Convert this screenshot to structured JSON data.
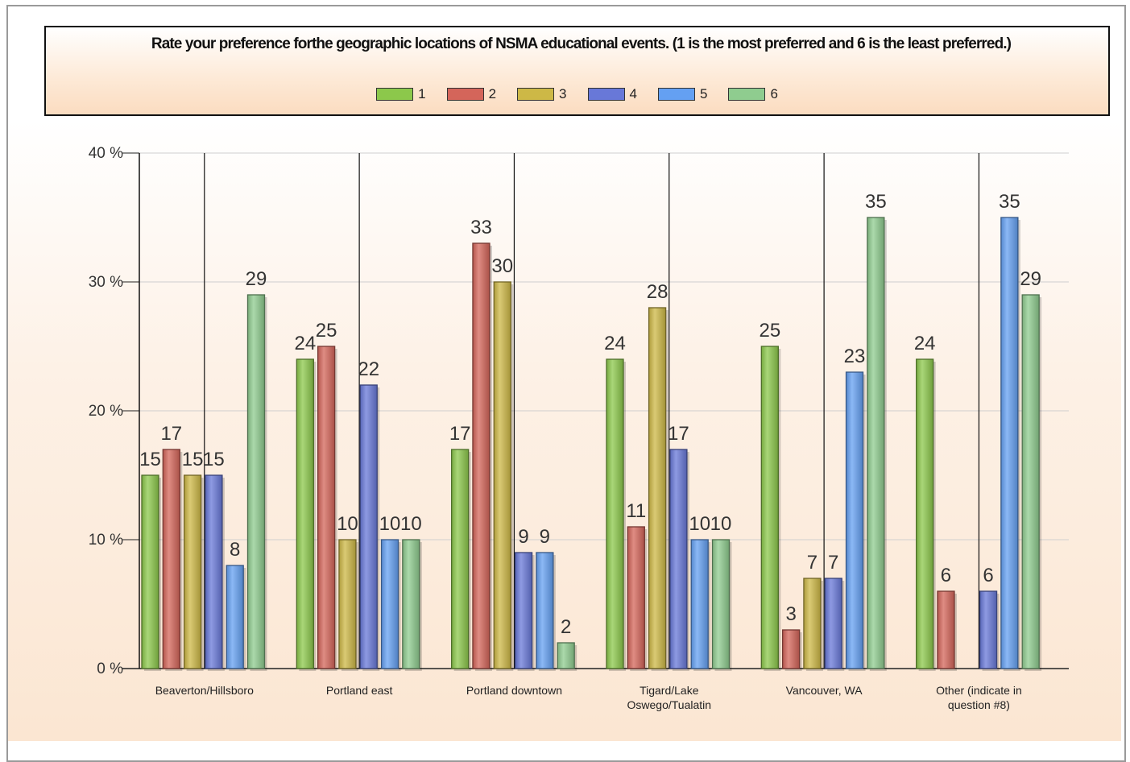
{
  "chart_data": {
    "type": "bar",
    "title": "Rate your preference forthe geographic locations of NSMA educational events. (1 is the most preferred and 6 is the least preferred.)",
    "categories": [
      "Beaverton/Hillsboro",
      "Portland east",
      "Portland downtown",
      "Tigard/Lake Oswego/Tualatin",
      "Vancouver, WA",
      "Other (indicate in question #8)"
    ],
    "category_lines": [
      [
        "Beaverton/Hillsboro"
      ],
      [
        "Portland east"
      ],
      [
        "Portland downtown"
      ],
      [
        "Tigard/Lake",
        "Oswego/Tualatin"
      ],
      [
        "Vancouver, WA"
      ],
      [
        "Other (indicate in",
        "question #8)"
      ]
    ],
    "series": [
      {
        "name": "1",
        "color": "#8cc84b",
        "values": [
          15,
          24,
          17,
          24,
          25,
          24
        ]
      },
      {
        "name": "2",
        "color": "#d4655a",
        "values": [
          17,
          25,
          33,
          11,
          3,
          6
        ]
      },
      {
        "name": "3",
        "color": "#cdb846",
        "values": [
          15,
          10,
          30,
          28,
          7,
          0
        ]
      },
      {
        "name": "4",
        "color": "#6878d8",
        "values": [
          15,
          22,
          9,
          17,
          7,
          6
        ]
      },
      {
        "name": "5",
        "color": "#64a0f2",
        "values": [
          8,
          10,
          9,
          10,
          23,
          35
        ]
      },
      {
        "name": "6",
        "color": "#8fcc8f",
        "values": [
          29,
          10,
          2,
          10,
          35,
          29
        ]
      }
    ],
    "ylim": [
      0,
      40
    ],
    "yticks": [
      0,
      10,
      20,
      30,
      40
    ],
    "ytick_labels": [
      "0 %",
      "10 %",
      "20 %",
      "30 %",
      "40 %"
    ],
    "grid": true,
    "legend_position": "top-center"
  }
}
